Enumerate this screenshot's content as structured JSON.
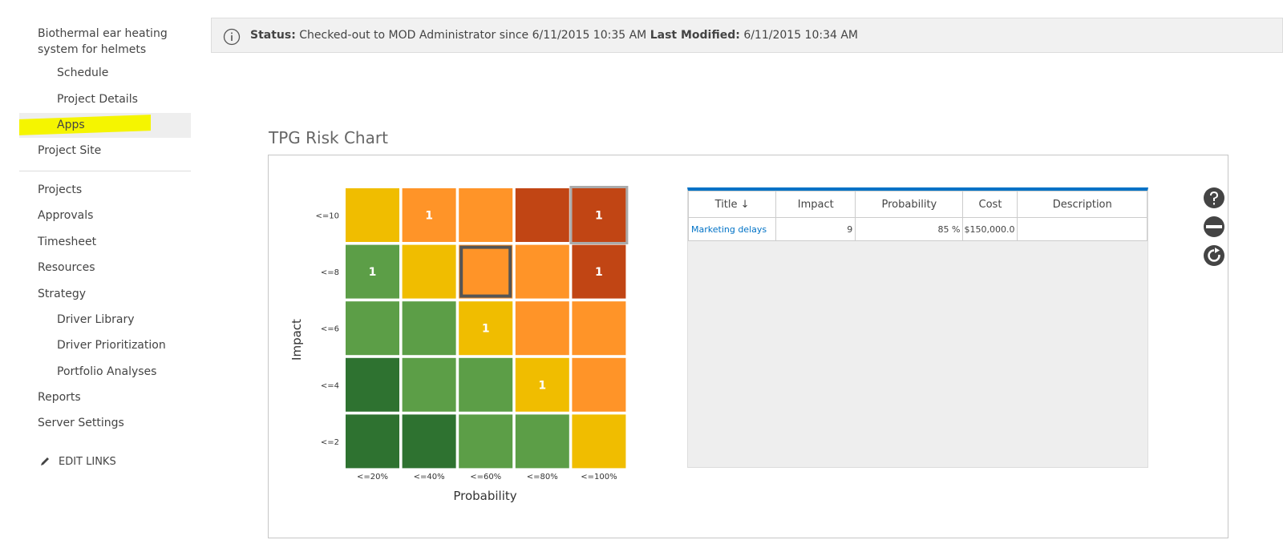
{
  "nav": {
    "project": "Biothermal ear heating system for helmets",
    "project_items": [
      "Schedule",
      "Project Details",
      "Apps"
    ],
    "site": "Project Site",
    "top_items": [
      "Projects",
      "Approvals",
      "Timesheet",
      "Resources",
      "Strategy"
    ],
    "strategy_items": [
      "Driver Library",
      "Driver Prioritization",
      "Portfolio Analyses"
    ],
    "bottom_items": [
      "Reports",
      "Server Settings"
    ],
    "edit": "EDIT LINKS"
  },
  "status": {
    "status_label": "Status:",
    "status_text": "Checked-out to MOD Administrator since 6/11/2015 10:35 AM",
    "modified_label": "Last Modified:",
    "modified_text": "6/11/2015 10:34 AM"
  },
  "webpart_title": "TPG Risk Chart",
  "risk_chart": {
    "y_label": "Impact",
    "x_label": "Probability",
    "rows": [
      "<=10",
      "<=8",
      "<=6",
      "<=4",
      "<=2"
    ],
    "cols": [
      "<=20%",
      "<=40%",
      "<=60%",
      "<=80%",
      "<=100%"
    ],
    "counts": [
      [
        null,
        1,
        null,
        null,
        1
      ],
      [
        1,
        null,
        null,
        null,
        1
      ],
      [
        null,
        null,
        1,
        null,
        null
      ],
      [
        null,
        null,
        null,
        1,
        null
      ],
      [
        null,
        null,
        null,
        null,
        null
      ]
    ],
    "colors": [
      [
        "#f0bd00",
        "#ff9428",
        "#ff9428",
        "#c14514",
        "#c14514"
      ],
      [
        "#5c9e47",
        "#f0bd00",
        "#ff9428",
        "#ff9428",
        "#c14514"
      ],
      [
        "#5c9e47",
        "#5c9e47",
        "#f0bd00",
        "#ff9428",
        "#ff9428"
      ],
      [
        "#2e7230",
        "#5c9e47",
        "#5c9e47",
        "#f0bd00",
        "#ff9428"
      ],
      [
        "#2e7230",
        "#2e7230",
        "#5c9e47",
        "#5c9e47",
        "#f0bd00"
      ]
    ]
  },
  "table": {
    "headers": [
      "Title ↓",
      "Impact",
      "Probability",
      "Cost",
      "Description"
    ],
    "rows": [
      [
        "Marketing delays",
        "9",
        "85 %",
        "$150,000.0"
      ]
    ]
  }
}
